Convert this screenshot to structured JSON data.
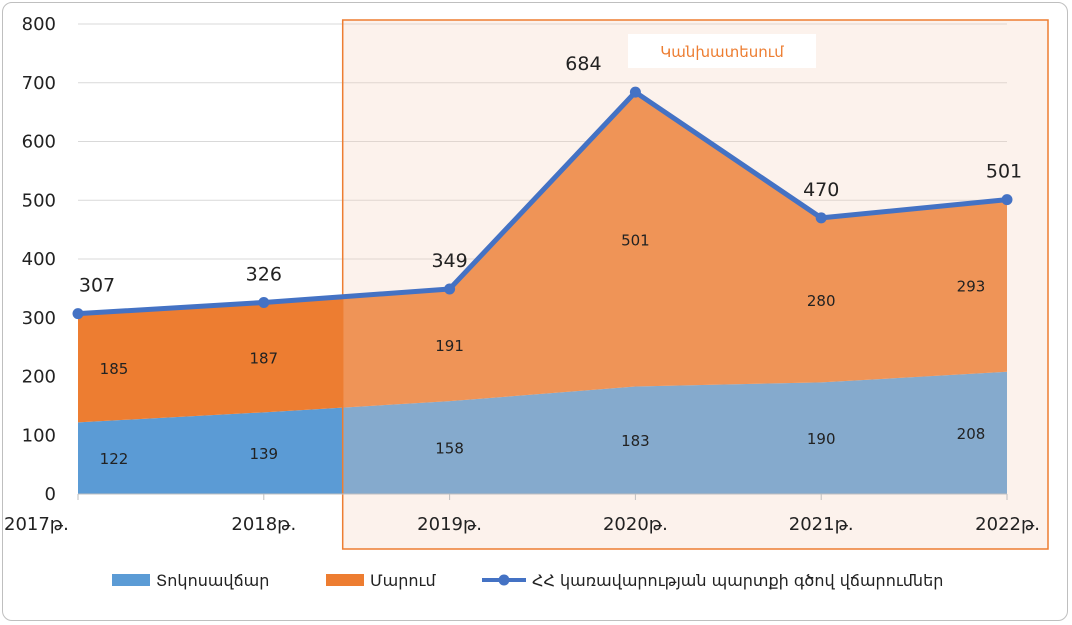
{
  "chart_data": {
    "type": "area",
    "categories": [
      "2017թ.",
      "2018թ.",
      "2019թ.",
      "2020թ.",
      "2021թ.",
      "2022թ."
    ],
    "series": [
      {
        "name": "Տոկոսավճար",
        "kind": "stacked-area",
        "color": "#5B9BD5",
        "values": [
          122,
          139,
          158,
          183,
          190,
          208
        ]
      },
      {
        "name": "Մարում",
        "kind": "stacked-area",
        "color": "#ED7D31",
        "values": [
          185,
          187,
          191,
          501,
          280,
          293
        ]
      },
      {
        "name": "ՀՀ կառավարության պարտքի գծով վճարումներ",
        "kind": "line",
        "color": "#4472C4",
        "values": [
          307,
          326,
          349,
          684,
          470,
          501
        ]
      }
    ],
    "ylim": [
      0,
      800
    ],
    "yticks": [
      "0",
      "100",
      "200",
      "300",
      "400",
      "500",
      "600",
      "700",
      "800"
    ],
    "grid": true,
    "legend_position": "bottom",
    "annotation": {
      "label": "Կանխատեսում",
      "covers_categories": [
        "2019թ.",
        "2020թ.",
        "2021թ.",
        "2022թ."
      ],
      "color": "#ED7D31"
    }
  }
}
